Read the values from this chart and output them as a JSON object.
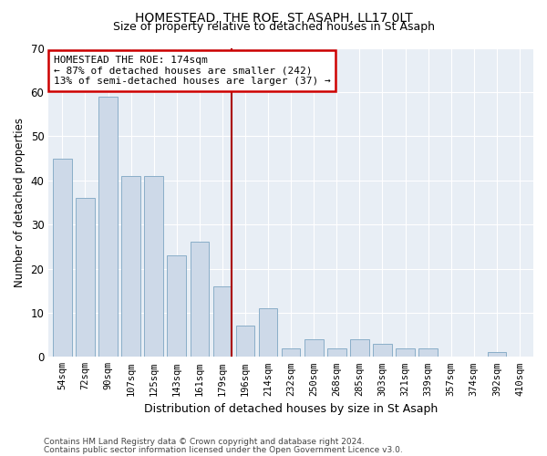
{
  "title": "HOMESTEAD, THE ROE, ST ASAPH, LL17 0LT",
  "subtitle": "Size of property relative to detached houses in St Asaph",
  "xlabel": "Distribution of detached houses by size in St Asaph",
  "ylabel": "Number of detached properties",
  "bar_color": "#cdd9e8",
  "bar_edge_color": "#8aaec8",
  "highlight_line_color": "#aa0000",
  "highlight_box_color": "#cc0000",
  "background_color": "#e8eef5",
  "categories": [
    "54sqm",
    "72sqm",
    "90sqm",
    "107sqm",
    "125sqm",
    "143sqm",
    "161sqm",
    "179sqm",
    "196sqm",
    "214sqm",
    "232sqm",
    "250sqm",
    "268sqm",
    "285sqm",
    "303sqm",
    "321sqm",
    "339sqm",
    "357sqm",
    "374sqm",
    "392sqm",
    "410sqm"
  ],
  "values": [
    45,
    36,
    59,
    41,
    41,
    23,
    26,
    16,
    7,
    11,
    2,
    4,
    2,
    4,
    3,
    2,
    2,
    0,
    0,
    1,
    0
  ],
  "highlight_index": 7,
  "annotation_line1": "HOMESTEAD THE ROE: 174sqm",
  "annotation_line2": "← 87% of detached houses are smaller (242)",
  "annotation_line3": "13% of semi-detached houses are larger (37) →",
  "footer_line1": "Contains HM Land Registry data © Crown copyright and database right 2024.",
  "footer_line2": "Contains public sector information licensed under the Open Government Licence v3.0.",
  "ylim": [
    0,
    70
  ],
  "yticks": [
    0,
    10,
    20,
    30,
    40,
    50,
    60,
    70
  ]
}
